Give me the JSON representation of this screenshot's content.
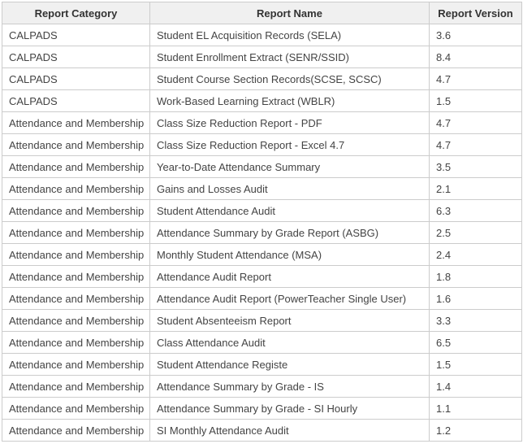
{
  "colors": {
    "header_bg": "#f0f0f0",
    "border": "#cccccc",
    "header_text": "#333333",
    "body_text": "#444444",
    "row_bg": "#ffffff"
  },
  "table": {
    "columns": [
      {
        "label": "Report Category"
      },
      {
        "label": "Report Name"
      },
      {
        "label": "Report Version"
      }
    ],
    "rows": [
      {
        "category": "CALPADS",
        "name": "Student EL Acquisition Records (SELA)",
        "version": "3.6"
      },
      {
        "category": "CALPADS",
        "name": "Student Enrollment Extract (SENR/SSID)",
        "version": "8.4"
      },
      {
        "category": "CALPADS",
        "name": "Student Course Section Records(SCSE, SCSC)",
        "version": "4.7"
      },
      {
        "category": "CALPADS",
        "name": "Work-Based Learning Extract (WBLR)",
        "version": "1.5"
      },
      {
        "category": "Attendance and Membership",
        "name": "Class Size Reduction Report - PDF",
        "version": "4.7"
      },
      {
        "category": "Attendance and Membership",
        "name": "Class Size Reduction Report - Excel 4.7",
        "version": "4.7"
      },
      {
        "category": "Attendance and Membership",
        "name": "Year-to-Date Attendance Summary",
        "version": "3.5"
      },
      {
        "category": "Attendance and Membership",
        "name": "Gains and Losses Audit",
        "version": "2.1"
      },
      {
        "category": "Attendance and Membership",
        "name": "Student Attendance Audit",
        "version": "6.3"
      },
      {
        "category": "Attendance and Membership",
        "name": "Attendance Summary by Grade Report (ASBG)",
        "version": "2.5"
      },
      {
        "category": "Attendance and Membership",
        "name": "Monthly Student Attendance (MSA)",
        "version": "2.4"
      },
      {
        "category": "Attendance and Membership",
        "name": "Attendance Audit Report",
        "version": "1.8"
      },
      {
        "category": "Attendance and Membership",
        "name": "Attendance Audit Report (PowerTeacher Single User)",
        "version": "1.6"
      },
      {
        "category": "Attendance and Membership",
        "name": "Student Absenteeism Report",
        "version": "3.3"
      },
      {
        "category": "Attendance and Membership",
        "name": "Class Attendance Audit",
        "version": "6.5"
      },
      {
        "category": "Attendance and Membership",
        "name": "Student Attendance Registe",
        "version": "1.5"
      },
      {
        "category": "Attendance and Membership",
        "name": "Attendance Summary by Grade - IS",
        "version": "1.4"
      },
      {
        "category": "Attendance and Membership",
        "name": "Attendance Summary by Grade - SI Hourly",
        "version": "1.1"
      },
      {
        "category": "Attendance and Membership",
        "name": "SI Monthly Attendance Audit",
        "version": "1.2"
      }
    ]
  }
}
